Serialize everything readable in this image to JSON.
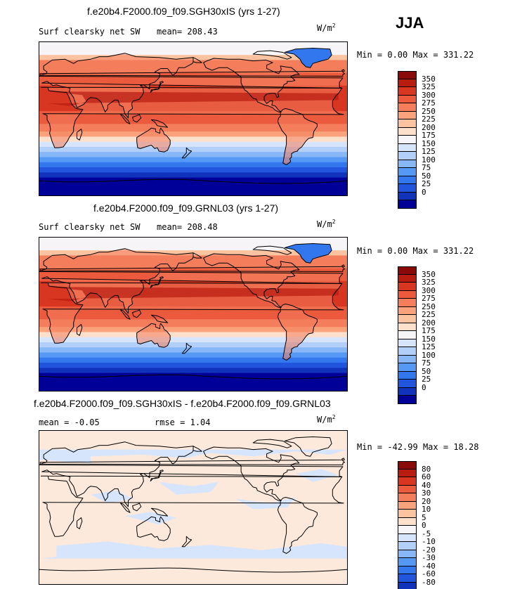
{
  "season": "JJA",
  "units_base": "W/m",
  "units_exp": "2",
  "palette": [
    "#000099",
    "#1133bb",
    "#2255dd",
    "#3377ee",
    "#5599f5",
    "#88b7f8",
    "#b1cff9",
    "#d6e5fb",
    "#f6f4f6",
    "#fde0cc",
    "#fcc3a0",
    "#f9a27b",
    "#f47e5c",
    "#ec5a3e",
    "#d93622",
    "#b81b10",
    "#8a0a0a"
  ],
  "chart_data": [
    {
      "type": "heatmap",
      "title": "f.e20b4.F2000.f09_f09.SGH30xIS (yrs 1-27)",
      "variable": "Surf clearsky net SW",
      "mean_label": "mean=",
      "mean": "208.43",
      "min_label": "Min =",
      "min": "0.00",
      "max_label": "Max =",
      "max": "331.22",
      "levels": [
        "350",
        "325",
        "300",
        "275",
        "250",
        "225",
        "200",
        "175",
        "150",
        "125",
        "100",
        "75",
        "50",
        "25",
        "0"
      ],
      "map": "field"
    },
    {
      "type": "heatmap",
      "title": "f.e20b4.F2000.f09_f09.GRNL03 (yrs 1-27)",
      "variable": "Surf clearsky net SW",
      "mean_label": "mean=",
      "mean": "208.48",
      "min_label": "Min =",
      "min": "0.00",
      "max_label": "Max =",
      "max": "331.22",
      "levels": [
        "350",
        "325",
        "300",
        "275",
        "250",
        "225",
        "200",
        "175",
        "150",
        "125",
        "100",
        "75",
        "50",
        "25",
        "0"
      ],
      "map": "field"
    },
    {
      "type": "heatmap",
      "title": "f.e20b4.F2000.f09_f09.SGH30xIS - f.e20b4.F2000.f09_f09.GRNL03",
      "mean_label": "mean =",
      "mean": "-0.05",
      "rmse_label": "rmse =",
      "rmse": "1.04",
      "min_label": "Min =",
      "min": "-42.99",
      "max_label": "Max =",
      "max": "18.28",
      "levels": [
        "80",
        "60",
        "40",
        "30",
        "20",
        "10",
        "5",
        "0",
        "-5",
        "-10",
        "-20",
        "-30",
        "-40",
        "-60",
        "-80"
      ],
      "map": "diff"
    }
  ]
}
